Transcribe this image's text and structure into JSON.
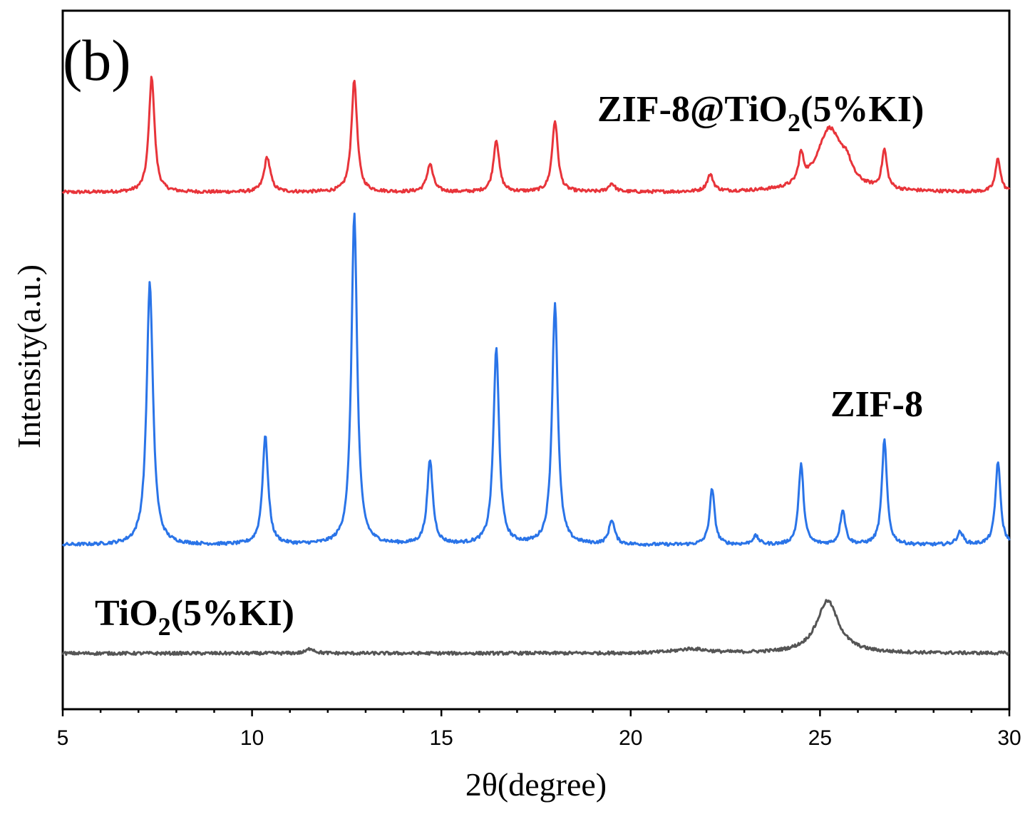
{
  "chart_data": {
    "type": "line",
    "panel_label": "(b)",
    "xlabel": "2θ(degree)",
    "ylabel": "Intensity(a.u.)",
    "xlim": [
      5,
      30
    ],
    "ylim": [
      0,
      100
    ],
    "xticks": [
      5,
      10,
      15,
      20,
      25,
      30
    ],
    "grid": false,
    "series": [
      {
        "name": "ZIF-8@TiO2(5%KI)",
        "label_main": "ZIF-8@TiO",
        "label_sub": "2",
        "label_tail": "(5%KI)",
        "color": "#e8343a",
        "baseline": 74,
        "peaks": [
          {
            "x": 7.35,
            "h": 16.5,
            "w": 0.09
          },
          {
            "x": 10.4,
            "h": 5.0,
            "w": 0.1
          },
          {
            "x": 12.7,
            "h": 16.0,
            "w": 0.09
          },
          {
            "x": 14.7,
            "h": 4.0,
            "w": 0.1
          },
          {
            "x": 16.45,
            "h": 7.5,
            "w": 0.09
          },
          {
            "x": 18.0,
            "h": 10.2,
            "w": 0.09
          },
          {
            "x": 19.5,
            "h": 1.2,
            "w": 0.1
          },
          {
            "x": 22.1,
            "h": 2.4,
            "w": 0.1
          },
          {
            "x": 24.5,
            "h": 4.0,
            "w": 0.08
          },
          {
            "x": 25.25,
            "h": 9.0,
            "w": 0.4
          },
          {
            "x": 25.7,
            "h": 2.2,
            "w": 0.15
          },
          {
            "x": 26.7,
            "h": 5.5,
            "w": 0.08
          },
          {
            "x": 29.7,
            "h": 4.8,
            "w": 0.08
          }
        ]
      },
      {
        "name": "ZIF-8",
        "label_main": "ZIF-8",
        "label_sub": "",
        "label_tail": "",
        "color": "#2a74e8",
        "baseline": 23.5,
        "peaks": [
          {
            "x": 7.3,
            "h": 37.5,
            "w": 0.1
          },
          {
            "x": 10.35,
            "h": 15.5,
            "w": 0.09
          },
          {
            "x": 12.7,
            "h": 47.5,
            "w": 0.09
          },
          {
            "x": 14.7,
            "h": 12.0,
            "w": 0.09
          },
          {
            "x": 16.45,
            "h": 28.0,
            "w": 0.09
          },
          {
            "x": 18.0,
            "h": 34.5,
            "w": 0.09
          },
          {
            "x": 19.5,
            "h": 3.5,
            "w": 0.09
          },
          {
            "x": 22.15,
            "h": 8.0,
            "w": 0.08
          },
          {
            "x": 23.3,
            "h": 1.2,
            "w": 0.1
          },
          {
            "x": 24.5,
            "h": 11.5,
            "w": 0.08
          },
          {
            "x": 25.6,
            "h": 5.0,
            "w": 0.08
          },
          {
            "x": 26.7,
            "h": 15.0,
            "w": 0.08
          },
          {
            "x": 28.7,
            "h": 1.8,
            "w": 0.1
          },
          {
            "x": 29.7,
            "h": 12.0,
            "w": 0.08
          }
        ]
      },
      {
        "name": "TiO2(5%KI)",
        "label_main": "TiO",
        "label_sub": "2",
        "label_tail": "(5%KI)",
        "color": "#555555",
        "baseline": 8.0,
        "peaks": [
          {
            "x": 11.55,
            "h": 0.7,
            "w": 0.12
          },
          {
            "x": 21.6,
            "h": 0.6,
            "w": 0.5
          },
          {
            "x": 25.2,
            "h": 7.5,
            "w": 0.35
          }
        ]
      }
    ]
  }
}
